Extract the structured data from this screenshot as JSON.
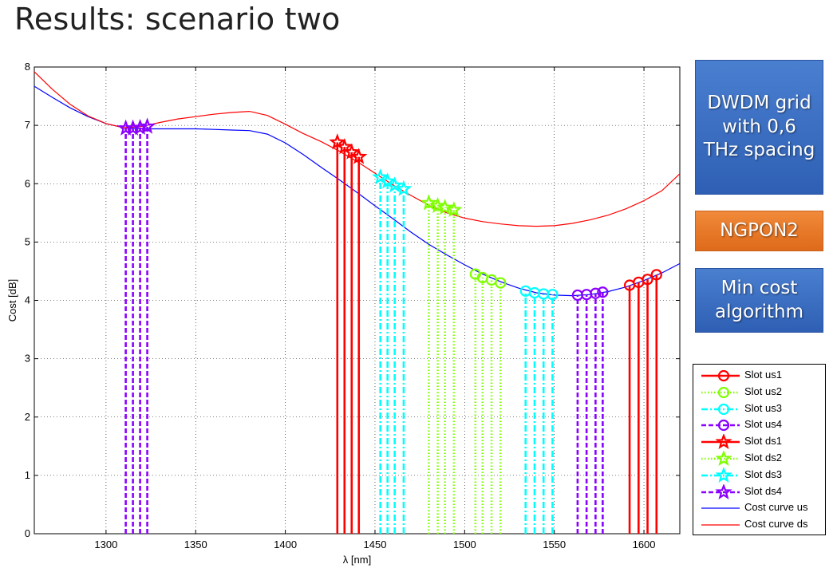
{
  "slide": {
    "title": "Results: scenario two"
  },
  "info_boxes": [
    {
      "id": "dwdm",
      "text": "DWDM grid with 0,6 THz spacing",
      "color": "#3b6cc4"
    },
    {
      "id": "ngpon",
      "text": "NGPON2",
      "color": "#e8782a"
    },
    {
      "id": "min",
      "text": "Min cost algorithm",
      "color": "#3b6cc4"
    }
  ],
  "chart_data": {
    "type": "line",
    "xlabel": "λ [nm]",
    "ylabel": "Cost [dB]",
    "xlim": [
      1260,
      1620
    ],
    "ylim": [
      0,
      8
    ],
    "xticks": [
      1300,
      1350,
      1400,
      1450,
      1500,
      1550,
      1600
    ],
    "yticks": [
      0,
      1,
      2,
      3,
      4,
      5,
      6,
      7,
      8
    ],
    "grid": true,
    "legend_position": "right",
    "curves": [
      {
        "name": "Cost curve us",
        "color": "#0000ff",
        "x": [
          1260,
          1270,
          1280,
          1290,
          1300,
          1310,
          1320,
          1330,
          1340,
          1350,
          1360,
          1370,
          1380,
          1390,
          1400,
          1410,
          1420,
          1430,
          1440,
          1450,
          1460,
          1470,
          1480,
          1490,
          1500,
          1510,
          1520,
          1530,
          1540,
          1550,
          1560,
          1570,
          1580,
          1590,
          1600,
          1610,
          1620
        ],
        "y": [
          7.67,
          7.48,
          7.3,
          7.15,
          7.03,
          6.96,
          6.94,
          6.94,
          6.94,
          6.94,
          6.93,
          6.92,
          6.91,
          6.85,
          6.7,
          6.5,
          6.28,
          6.07,
          5.85,
          5.62,
          5.4,
          5.17,
          4.96,
          4.78,
          4.61,
          4.45,
          4.32,
          4.21,
          4.13,
          4.09,
          4.08,
          4.1,
          4.15,
          4.23,
          4.34,
          4.47,
          4.63
        ]
      },
      {
        "name": "Cost curve ds",
        "color": "#ff0000",
        "x": [
          1260,
          1270,
          1280,
          1290,
          1300,
          1310,
          1320,
          1330,
          1340,
          1350,
          1360,
          1370,
          1380,
          1390,
          1400,
          1410,
          1420,
          1430,
          1440,
          1450,
          1460,
          1470,
          1480,
          1490,
          1500,
          1510,
          1520,
          1530,
          1540,
          1550,
          1560,
          1570,
          1580,
          1590,
          1600,
          1610,
          1620
        ],
        "y": [
          7.92,
          7.62,
          7.36,
          7.16,
          7.03,
          6.96,
          6.98,
          7.05,
          7.11,
          7.15,
          7.19,
          7.22,
          7.24,
          7.17,
          7.02,
          6.86,
          6.72,
          6.56,
          6.38,
          6.18,
          5.98,
          5.8,
          5.63,
          5.5,
          5.41,
          5.35,
          5.31,
          5.28,
          5.27,
          5.28,
          5.32,
          5.38,
          5.46,
          5.57,
          5.71,
          5.88,
          6.17
        ]
      }
    ],
    "series": [
      {
        "name": "Slot us1",
        "color": "#ff0000",
        "marker": "circle",
        "line": "solid",
        "x": [
          1592,
          1597,
          1602,
          1607
        ],
        "y": [
          4.26,
          4.31,
          4.36,
          4.44
        ]
      },
      {
        "name": "Slot us2",
        "color": "#7fff00",
        "marker": "circle",
        "line": "dotted",
        "x": [
          1506,
          1510,
          1515,
          1520
        ],
        "y": [
          4.45,
          4.39,
          4.35,
          4.3
        ]
      },
      {
        "name": "Slot us3",
        "color": "#00ffff",
        "marker": "circle",
        "line": "dashdot",
        "x": [
          1534,
          1539,
          1544,
          1549
        ],
        "y": [
          4.16,
          4.13,
          4.11,
          4.1
        ]
      },
      {
        "name": "Slot us4",
        "color": "#8b00ff",
        "marker": "circle",
        "line": "dashed",
        "x": [
          1563,
          1568,
          1573,
          1577
        ],
        "y": [
          4.09,
          4.1,
          4.12,
          4.14
        ]
      },
      {
        "name": "Slot ds1",
        "color": "#ff0000",
        "marker": "star",
        "line": "solid",
        "x": [
          1429,
          1433,
          1437,
          1441
        ],
        "y": [
          6.71,
          6.63,
          6.54,
          6.46
        ]
      },
      {
        "name": "Slot ds2",
        "color": "#7fff00",
        "marker": "star",
        "line": "dotted",
        "x": [
          1480,
          1485,
          1489,
          1494
        ],
        "y": [
          5.67,
          5.62,
          5.59,
          5.55
        ]
      },
      {
        "name": "Slot ds3",
        "color": "#00ffff",
        "marker": "star",
        "line": "dashdot",
        "x": [
          1453,
          1457,
          1461,
          1466
        ],
        "y": [
          6.11,
          6.04,
          5.97,
          5.91
        ]
      },
      {
        "name": "Slot ds4",
        "color": "#8b00ff",
        "marker": "star",
        "line": "dashed",
        "x": [
          1311,
          1315,
          1319,
          1323
        ],
        "y": [
          6.95,
          6.95,
          6.96,
          6.98
        ]
      }
    ],
    "legend": [
      "Slot us1",
      "Slot us2",
      "Slot us3",
      "Slot us4",
      "Slot ds1",
      "Slot ds2",
      "Slot ds3",
      "Slot ds4",
      "Cost curve us",
      "Cost curve ds"
    ]
  }
}
